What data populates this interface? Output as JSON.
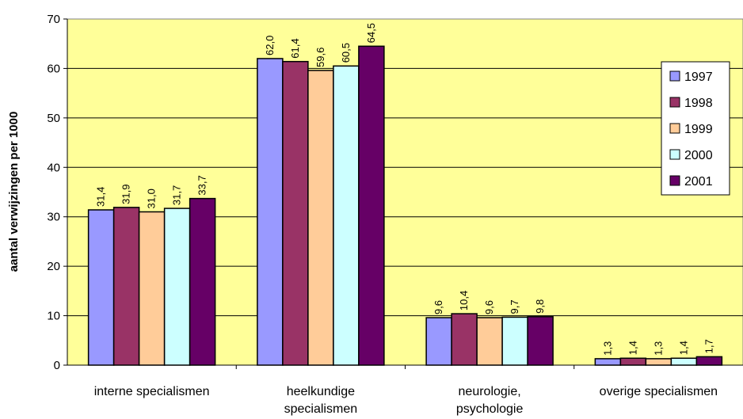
{
  "chart_data": {
    "type": "bar",
    "title": "",
    "xlabel": "",
    "ylabel": "aantal verwijzingen per 1000",
    "ylim": [
      0,
      70
    ],
    "yticks": [
      0,
      10,
      20,
      30,
      40,
      50,
      60,
      70
    ],
    "grid": true,
    "legend_position": "right",
    "categories": [
      [
        "interne specialismen"
      ],
      [
        "heelkundige",
        "specialismen"
      ],
      [
        "neurologie,",
        "psychologie"
      ],
      [
        "overige specialismen"
      ]
    ],
    "series": [
      {
        "name": "1997",
        "color": "#9999ff",
        "values": [
          31.4,
          62.0,
          9.6,
          1.3
        ],
        "labels": [
          "31,4",
          "62,0",
          "9,6",
          "1,3"
        ]
      },
      {
        "name": "1998",
        "color": "#993366",
        "values": [
          31.9,
          61.4,
          10.4,
          1.4
        ],
        "labels": [
          "31,9",
          "61,4",
          "10,4",
          "1,4"
        ]
      },
      {
        "name": "1999",
        "color": "#ffcc99",
        "values": [
          31.0,
          59.6,
          9.6,
          1.3
        ],
        "labels": [
          "31,0",
          "59,6",
          "9,6",
          "1,3"
        ]
      },
      {
        "name": "2000",
        "color": "#ccffff",
        "values": [
          31.7,
          60.5,
          9.7,
          1.4
        ],
        "labels": [
          "31,7",
          "60,5",
          "9,7",
          "1,4"
        ]
      },
      {
        "name": "2001",
        "color": "#660066",
        "values": [
          33.7,
          64.5,
          9.8,
          1.7
        ],
        "labels": [
          "33,7",
          "64,5",
          "9,8",
          "1,7"
        ]
      }
    ],
    "plot_background": "#ffff99"
  }
}
